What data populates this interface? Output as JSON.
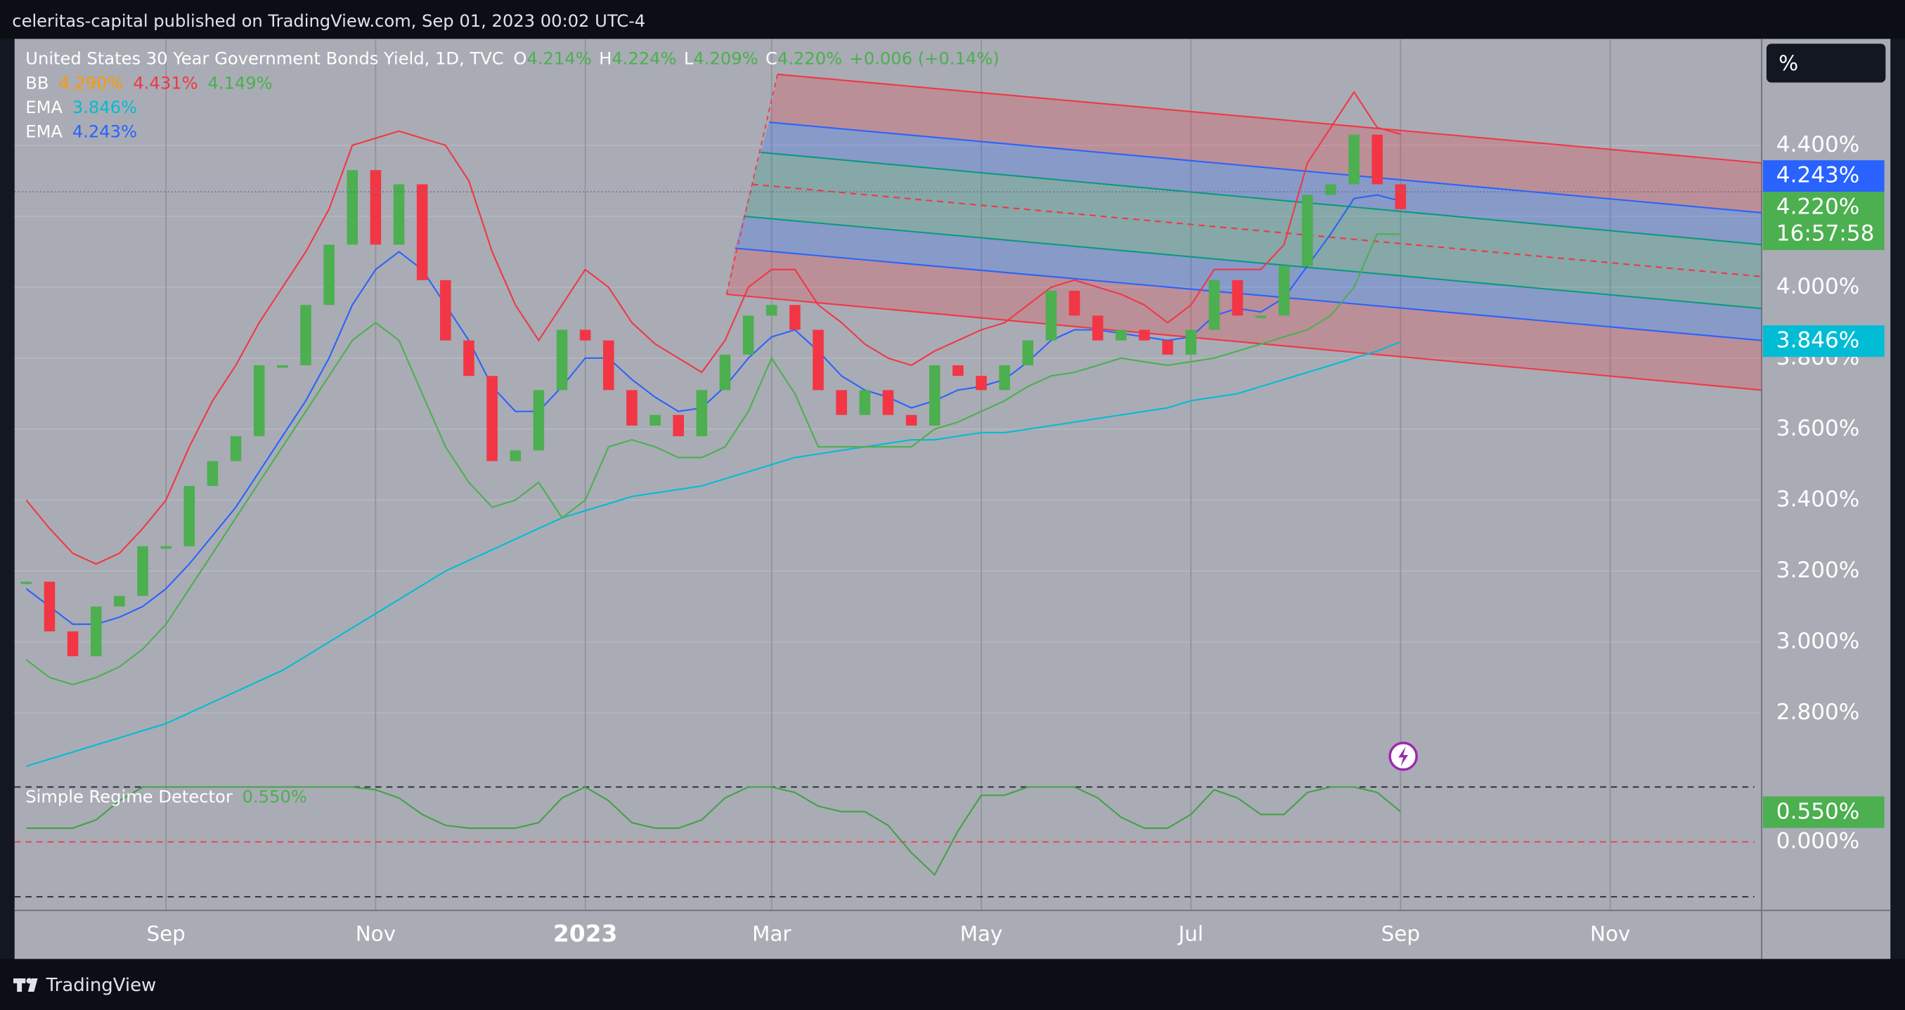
{
  "header": {
    "publisher": "celeritas-capital published on TradingView.com, Sep 01, 2023 00:02 UTC-4"
  },
  "footer": {
    "brand": "TradingView"
  },
  "scale_button": "%",
  "legend": {
    "symbol": "United States 30 Year Government Bonds Yield, 1D, TVC",
    "ohlc": [
      {
        "key": "O",
        "value": "4.214%"
      },
      {
        "key": "H",
        "value": "4.224%"
      },
      {
        "key": "L",
        "value": "4.209%"
      },
      {
        "key": "C",
        "value": "4.220%"
      }
    ],
    "change": "+0.006 (+0.14%)",
    "indicators": [
      {
        "name": "BB",
        "values": [
          "4.290%",
          "4.431%",
          "4.149%"
        ],
        "colors": [
          "#ff9800",
          "#f23645",
          "#4caf50"
        ]
      },
      {
        "name": "EMA",
        "values": [
          "3.846%"
        ],
        "colors": [
          "#00bcd4"
        ]
      },
      {
        "name": "EMA",
        "values": [
          "4.243%"
        ],
        "colors": [
          "#2962ff"
        ]
      }
    ],
    "countdown": "16:57:58"
  },
  "chart_data": [
    {
      "type": "candlestick-line",
      "categories": [
        null,
        null,
        null,
        null,
        null,
        null,
        "Sep",
        null,
        null,
        null,
        null,
        null,
        null,
        null,
        null,
        "Nov",
        null,
        null,
        null,
        null,
        null,
        null,
        null,
        null,
        "2023",
        null,
        null,
        null,
        null,
        null,
        null,
        null,
        "Mar",
        null,
        null,
        null,
        null,
        null,
        null,
        null,
        null,
        "May",
        null,
        null,
        null,
        null,
        null,
        null,
        null,
        null,
        "Jul",
        null,
        null,
        null,
        null,
        null,
        null,
        null,
        null,
        "Sep",
        null,
        null,
        null,
        null,
        null,
        null,
        null,
        null,
        "Nov",
        null,
        null,
        null,
        null,
        null,
        null
      ],
      "ylim": [
        2.63,
        4.7
      ],
      "yticks": [
        {
          "value": 2.8,
          "label": "2.800%"
        },
        {
          "value": 3.0,
          "label": "3.000%"
        },
        {
          "value": 3.2,
          "label": "3.200%"
        },
        {
          "value": 3.4,
          "label": "3.400%"
        },
        {
          "value": 3.6,
          "label": "3.600%"
        },
        {
          "value": 3.8,
          "label": "3.800%"
        },
        {
          "value": 4.0,
          "label": "4.000%"
        },
        {
          "value": 4.2,
          "label": "4.200%"
        },
        {
          "value": 4.4,
          "label": "4.400%"
        }
      ],
      "grid": true,
      "series": [
        {
          "type": "candle",
          "up_color": "#4caf50",
          "down_color": "#f23645",
          "values": [
            3.17,
            3.03,
            2.96,
            3.1,
            3.13,
            3.27,
            3.27,
            3.44,
            3.51,
            3.58,
            3.78,
            3.78,
            3.95,
            4.12,
            4.33,
            4.12,
            4.29,
            4.02,
            3.85,
            3.75,
            3.51,
            3.54,
            3.71,
            3.88,
            3.85,
            3.71,
            3.61,
            3.64,
            3.58,
            3.71,
            3.81,
            3.92,
            3.95,
            3.88,
            3.71,
            3.64,
            3.71,
            3.64,
            3.61,
            3.78,
            3.75,
            3.71,
            3.78,
            3.85,
            3.99,
            3.92,
            3.85,
            3.88,
            3.85,
            3.81,
            3.88,
            4.02,
            3.92,
            3.92,
            4.06,
            4.26,
            4.29,
            4.43,
            4.29,
            4.22,
            null,
            null,
            null,
            null,
            null,
            null,
            null,
            null,
            null,
            null,
            null,
            null,
            null,
            null,
            null
          ]
        },
        {
          "type": "line",
          "color": "#2962ff",
          "values": [
            3.15,
            3.1,
            3.05,
            3.05,
            3.07,
            3.1,
            3.15,
            3.22,
            3.3,
            3.38,
            3.48,
            3.58,
            3.68,
            3.8,
            3.95,
            4.05,
            4.1,
            4.05,
            3.95,
            3.85,
            3.72,
            3.65,
            3.65,
            3.72,
            3.8,
            3.8,
            3.74,
            3.69,
            3.65,
            3.66,
            3.72,
            3.8,
            3.86,
            3.88,
            3.82,
            3.75,
            3.71,
            3.69,
            3.66,
            3.68,
            3.71,
            3.72,
            3.74,
            3.79,
            3.85,
            3.88,
            3.88,
            3.87,
            3.86,
            3.85,
            3.86,
            3.92,
            3.94,
            3.93,
            3.97,
            4.06,
            4.15,
            4.25,
            4.26,
            4.243,
            null,
            null,
            null,
            null,
            null,
            null,
            null,
            null,
            null,
            null,
            null,
            null,
            null,
            null,
            null
          ]
        },
        {
          "type": "line",
          "color": "#00bcd4",
          "values": [
            2.65,
            2.67,
            2.69,
            2.71,
            2.73,
            2.75,
            2.77,
            2.8,
            2.83,
            2.86,
            2.89,
            2.92,
            2.96,
            3.0,
            3.04,
            3.08,
            3.12,
            3.16,
            3.2,
            3.23,
            3.26,
            3.29,
            3.32,
            3.35,
            3.37,
            3.39,
            3.41,
            3.42,
            3.43,
            3.44,
            3.46,
            3.48,
            3.5,
            3.52,
            3.53,
            3.54,
            3.55,
            3.56,
            3.57,
            3.57,
            3.58,
            3.59,
            3.59,
            3.6,
            3.61,
            3.62,
            3.63,
            3.64,
            3.65,
            3.66,
            3.68,
            3.69,
            3.7,
            3.72,
            3.74,
            3.76,
            3.78,
            3.8,
            3.82,
            3.846,
            null,
            null,
            null,
            null,
            null,
            null,
            null,
            null,
            null,
            null,
            null,
            null,
            null,
            null,
            null
          ]
        },
        {
          "type": "line",
          "color": "#f23645",
          "values": [
            3.4,
            3.32,
            3.25,
            3.22,
            3.25,
            3.32,
            3.4,
            3.55,
            3.68,
            3.78,
            3.9,
            4.0,
            4.1,
            4.22,
            4.4,
            4.42,
            4.44,
            4.42,
            4.4,
            4.3,
            4.1,
            3.95,
            3.85,
            3.95,
            4.05,
            4.0,
            3.9,
            3.84,
            3.8,
            3.76,
            3.85,
            4.0,
            4.05,
            4.05,
            3.95,
            3.9,
            3.84,
            3.8,
            3.78,
            3.82,
            3.85,
            3.88,
            3.9,
            3.95,
            4.0,
            4.02,
            4.0,
            3.98,
            3.95,
            3.9,
            3.95,
            4.05,
            4.05,
            4.05,
            4.12,
            4.35,
            4.45,
            4.55,
            4.45,
            4.431,
            null,
            null,
            null,
            null,
            null,
            null,
            null,
            null,
            null,
            null,
            null,
            null,
            null,
            null,
            null
          ]
        },
        {
          "type": "line",
          "color": "#4caf50",
          "values": [
            2.95,
            2.9,
            2.88,
            2.9,
            2.93,
            2.98,
            3.05,
            3.15,
            3.25,
            3.35,
            3.45,
            3.55,
            3.65,
            3.75,
            3.85,
            3.9,
            3.85,
            3.7,
            3.55,
            3.45,
            3.38,
            3.4,
            3.45,
            3.35,
            3.4,
            3.55,
            3.57,
            3.55,
            3.52,
            3.52,
            3.55,
            3.65,
            3.8,
            3.7,
            3.55,
            3.55,
            3.55,
            3.55,
            3.55,
            3.6,
            3.62,
            3.65,
            3.68,
            3.72,
            3.75,
            3.76,
            3.78,
            3.8,
            3.79,
            3.78,
            3.79,
            3.8,
            3.82,
            3.84,
            3.86,
            3.88,
            3.92,
            4.0,
            4.15,
            4.149,
            null,
            null,
            null,
            null,
            null,
            null,
            null,
            null,
            null,
            null,
            null,
            null,
            null,
            null,
            null
          ]
        }
      ],
      "channel": [
        {
          "color": "#f23645",
          "values": [
            4.6,
            4.35
          ]
        },
        {
          "color": "#2962ff",
          "values": [
            4.465,
            4.21
          ]
        },
        {
          "color": "#089981",
          "values": [
            4.38,
            4.12
          ]
        },
        {
          "color": "#f23645",
          "dashed": true,
          "values": [
            4.29,
            4.03
          ]
        },
        {
          "color": "#089981",
          "values": [
            4.2,
            3.94
          ]
        },
        {
          "color": "#2962ff",
          "values": [
            4.11,
            3.85
          ]
        },
        {
          "color": "#f23645",
          "values": [
            3.98,
            3.71
          ]
        }
      ],
      "channel_fills": [
        "rgba(242,54,69,0.25)",
        "rgba(41,98,255,0.25)",
        "rgba(8,153,129,0.22)",
        "rgba(8,153,129,0.22)",
        "rgba(41,98,255,0.25)",
        "rgba(242,54,69,0.25)"
      ]
    },
    {
      "type": "line",
      "title": "Simple Regime Detector",
      "value_label": "0.550%",
      "color": "#43a047",
      "ylim": [
        -1.25,
        1.25
      ],
      "yticks": [
        {
          "value": 0,
          "label": "0.000%"
        }
      ],
      "hlines": [
        {
          "value": 1,
          "color": "#1e222d"
        },
        {
          "value": 0,
          "color": "#f23645"
        },
        {
          "value": -1,
          "color": "#1e222d"
        }
      ],
      "values": [
        0.25,
        0.25,
        0.25,
        0.4,
        0.75,
        1.0,
        1.0,
        1.0,
        1.0,
        1.0,
        1.0,
        1.0,
        1.0,
        1.0,
        1.0,
        0.95,
        0.8,
        0.5,
        0.3,
        0.25,
        0.25,
        0.25,
        0.35,
        0.8,
        1.0,
        0.75,
        0.35,
        0.25,
        0.25,
        0.4,
        0.8,
        1.0,
        1.0,
        0.9,
        0.65,
        0.55,
        0.55,
        0.3,
        -0.2,
        -0.6,
        0.2,
        0.85,
        0.85,
        1.0,
        1.0,
        1.0,
        0.8,
        0.45,
        0.25,
        0.25,
        0.5,
        0.95,
        0.8,
        0.5,
        0.5,
        0.9,
        1.0,
        1.0,
        0.9,
        0.55,
        null,
        null,
        null,
        null,
        null,
        null,
        null,
        null,
        null,
        null,
        null,
        null,
        null,
        null,
        null
      ]
    }
  ]
}
